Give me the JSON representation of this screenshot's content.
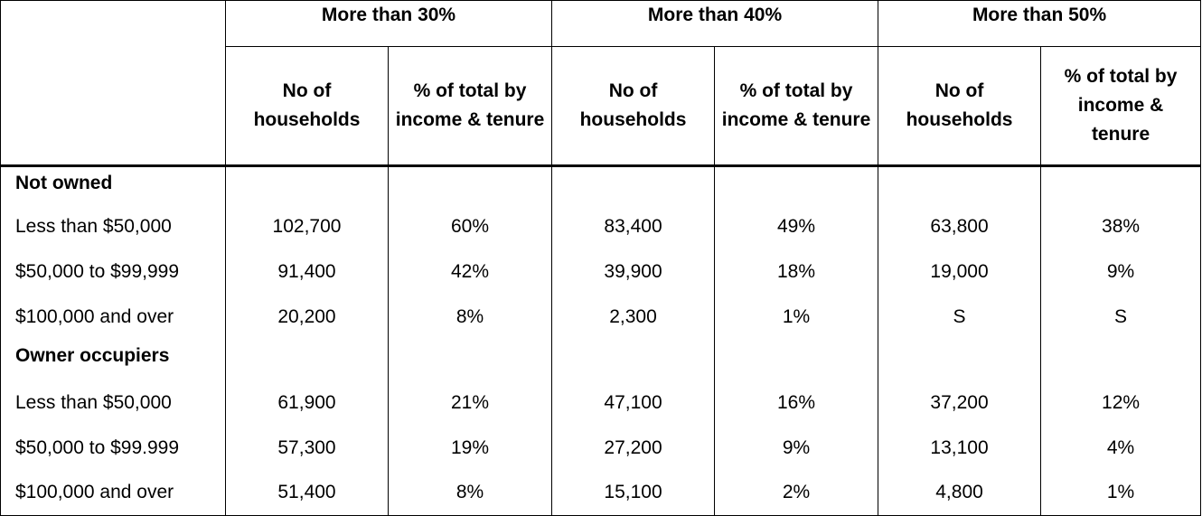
{
  "header": {
    "groups": [
      "More than 30%",
      "More than 40%",
      "More than 50%"
    ],
    "col_households": "No of households",
    "col_percent": "% of total by income & tenure"
  },
  "sections": [
    {
      "title": "Not owned",
      "rows": [
        {
          "label": "Less than $50,000",
          "values": [
            "102,700",
            "60%",
            "83,400",
            "49%",
            "63,800",
            "38%"
          ]
        },
        {
          "label": "$50,000 to $99,999",
          "values": [
            "91,400",
            "42%",
            "39,900",
            "18%",
            "19,000",
            "9%"
          ]
        },
        {
          "label": "$100,000 and over",
          "values": [
            "20,200",
            "8%",
            "2,300",
            "1%",
            "S",
            "S"
          ]
        }
      ]
    },
    {
      "title": "Owner occupiers",
      "rows": [
        {
          "label": "Less than $50,000",
          "values": [
            "61,900",
            "21%",
            "47,100",
            "16%",
            "37,200",
            "12%"
          ]
        },
        {
          "label": "$50,000 to $99.999",
          "values": [
            "57,300",
            "19%",
            "27,200",
            "9%",
            "13,100",
            "4%"
          ]
        },
        {
          "label": "$100,000 and over",
          "values": [
            "51,400",
            "8%",
            "15,100",
            "2%",
            "4,800",
            "1%"
          ]
        }
      ]
    }
  ]
}
